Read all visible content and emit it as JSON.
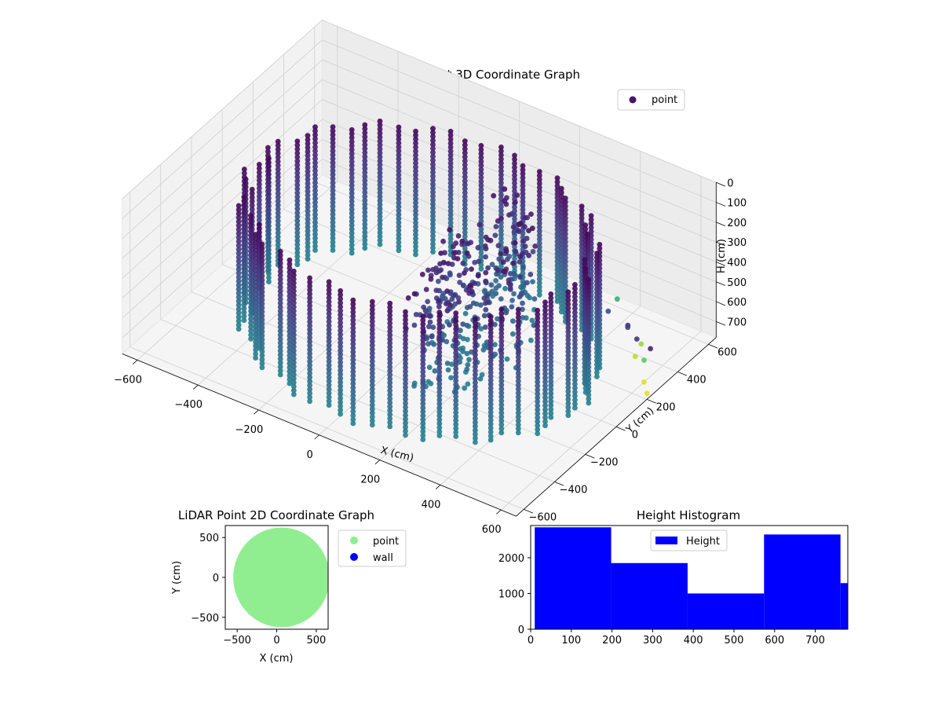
{
  "chart_data": [
    {
      "type": "scatter3d",
      "title": "LiDAR Point 3D Coordinate Graph",
      "xlabel": "X (cm)",
      "ylabel": "Y (cm)",
      "zlabel": "H (cm)",
      "xticks": [
        "−600",
        "−400",
        "−200",
        "0",
        "200",
        "400",
        "600"
      ],
      "yticks": [
        "−600",
        "−400",
        "−200",
        "0",
        "200",
        "400",
        "600"
      ],
      "zticks": [
        "0",
        "100",
        "200",
        "300",
        "400",
        "500",
        "600",
        "700"
      ],
      "xlim": [
        -650,
        650
      ],
      "ylim": [
        -650,
        650
      ],
      "zlim": [
        0,
        780
      ],
      "z_inverted": true,
      "legend": [
        {
          "label": "point",
          "color": "#46166b"
        }
      ],
      "legend_position": "top-right",
      "colormap": "viridis",
      "grid": true,
      "wall_radius": 530,
      "ring_height_range": [
        150,
        770
      ],
      "stray_points": [
        {
          "x": 420,
          "y": 460,
          "h": 600,
          "c": 0.65
        },
        {
          "x": 560,
          "y": 340,
          "h": 655,
          "c": 0.85
        },
        {
          "x": 590,
          "y": 300,
          "h": 690,
          "c": 0.75
        },
        {
          "x": 350,
          "y": 420,
          "h": 740,
          "c": 0.55
        },
        {
          "x": 610,
          "y": 260,
          "h": 760,
          "c": 0.95
        },
        {
          "x": 520,
          "y": 380,
          "h": 770,
          "c": 0.9
        },
        {
          "x": 640,
          "y": 220,
          "h": 770,
          "c": 0.95
        },
        {
          "x": 470,
          "y": 430,
          "h": 690,
          "c": 0.2
        },
        {
          "x": 450,
          "y": 470,
          "h": 720,
          "c": 0.15
        },
        {
          "x": 500,
          "y": 430,
          "h": 730,
          "c": 0.15
        },
        {
          "x": 300,
          "y": 470,
          "h": 760,
          "c": 0.2
        },
        {
          "x": 560,
          "y": 400,
          "h": 720,
          "c": 0.1
        },
        {
          "x": 380,
          "y": 480,
          "h": 700,
          "c": 0.25
        }
      ]
    },
    {
      "type": "scatter",
      "title": "LiDAR Point 2D Coordinate Graph",
      "xlabel": "X (cm)",
      "ylabel": "Y (cm)",
      "xticks": [
        "−500",
        "0",
        "500"
      ],
      "yticks": [
        "−500",
        "0",
        "500"
      ],
      "xlim": [
        -650,
        650
      ],
      "ylim": [
        -650,
        650
      ],
      "series": [
        {
          "name": "point",
          "color": "#90ee90",
          "shape": "disk",
          "radius": 530
        },
        {
          "name": "wall",
          "color": "#0000ff",
          "values": []
        }
      ],
      "legend_position": "outside-right",
      "grid": false
    },
    {
      "type": "bar",
      "title": "Height Histogram",
      "xticks": [
        "0",
        "100",
        "200",
        "300",
        "400",
        "500",
        "600",
        "700"
      ],
      "yticks": [
        "0",
        "1000",
        "2000"
      ],
      "xlim": [
        0,
        780
      ],
      "ylim": [
        0,
        2900
      ],
      "bin_edges": [
        10,
        198,
        386,
        574,
        762,
        950
      ],
      "values": [
        2850,
        1850,
        1000,
        2650,
        1290
      ],
      "series": [
        {
          "name": "Height",
          "color": "#0000ff"
        }
      ],
      "legend_position": "upper-center",
      "grid": false
    }
  ]
}
